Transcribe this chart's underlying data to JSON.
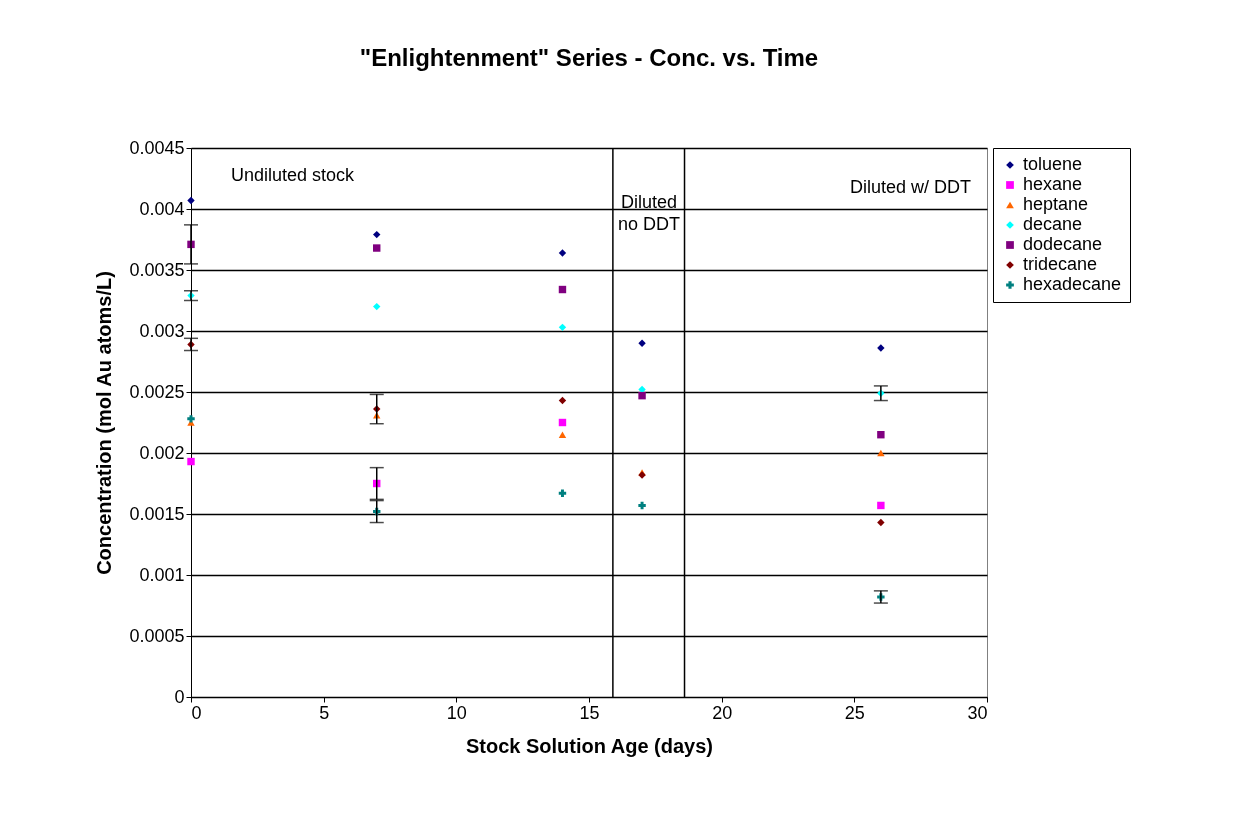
{
  "chart_data": {
    "type": "scatter",
    "title": "\"Enlightenment\" Series - Conc. vs. Time",
    "xlabel": "Stock Solution Age (days)",
    "ylabel": "Concentration (mol Au atoms/L)",
    "x": [
      0,
      7,
      14,
      17,
      26
    ],
    "series": [
      {
        "name": "toluene",
        "color": "#000080",
        "marker": "diamond",
        "values": [
          0.00407,
          0.00379,
          0.00364,
          0.0029,
          0.00286
        ]
      },
      {
        "name": "hexane",
        "color": "#ff00ff",
        "marker": "square",
        "values": [
          0.00193,
          0.00175,
          0.00225,
          null,
          0.00157
        ],
        "errors": [
          null,
          0.00013,
          null,
          null,
          null
        ]
      },
      {
        "name": "heptane",
        "color": "#ff6600",
        "marker": "triangle",
        "values": [
          0.00225,
          0.00231,
          0.00215,
          0.00184,
          0.002
        ]
      },
      {
        "name": "decane",
        "color": "#00ffff",
        "marker": "diamond",
        "values": [
          0.00329,
          0.0032,
          0.00303,
          0.00252,
          0.00249
        ],
        "errors": [
          4e-05,
          null,
          null,
          null,
          6e-05
        ]
      },
      {
        "name": "dodecane",
        "color": "#800080",
        "marker": "square",
        "values": [
          0.00371,
          0.00368,
          0.00334,
          0.00247,
          0.00215
        ],
        "errors": [
          0.00016,
          null,
          null,
          null,
          null
        ]
      },
      {
        "name": "tridecane",
        "color": "#800000",
        "marker": "diamond",
        "values": [
          0.00289,
          0.00236,
          0.00243,
          0.00182,
          0.00143
        ],
        "errors": [
          5e-05,
          0.00012,
          null,
          null,
          null
        ]
      },
      {
        "name": "hexadecane",
        "color": "#008080",
        "marker": "cross",
        "values": [
          0.00228,
          0.00152,
          0.00167,
          0.00157,
          0.00082
        ],
        "errors": [
          null,
          9e-05,
          null,
          null,
          5e-05
        ]
      }
    ],
    "xlim": [
      0,
      30
    ],
    "xticks": [
      0,
      5,
      10,
      15,
      20,
      25,
      30
    ],
    "ylim": [
      0,
      0.0045
    ],
    "yticks": [
      0,
      0.0005,
      0.001,
      0.0015,
      0.002,
      0.0025,
      0.003,
      0.0035,
      0.004,
      0.0045
    ],
    "grid": "y",
    "legend": "right",
    "ref_lines": [
      {
        "axis": "x",
        "value": 15.9
      },
      {
        "axis": "x",
        "value": 18.6
      }
    ],
    "annotations": [
      "Undiluted stock",
      "Diluted\nno DDT",
      "Diluted w/ DDT"
    ]
  }
}
